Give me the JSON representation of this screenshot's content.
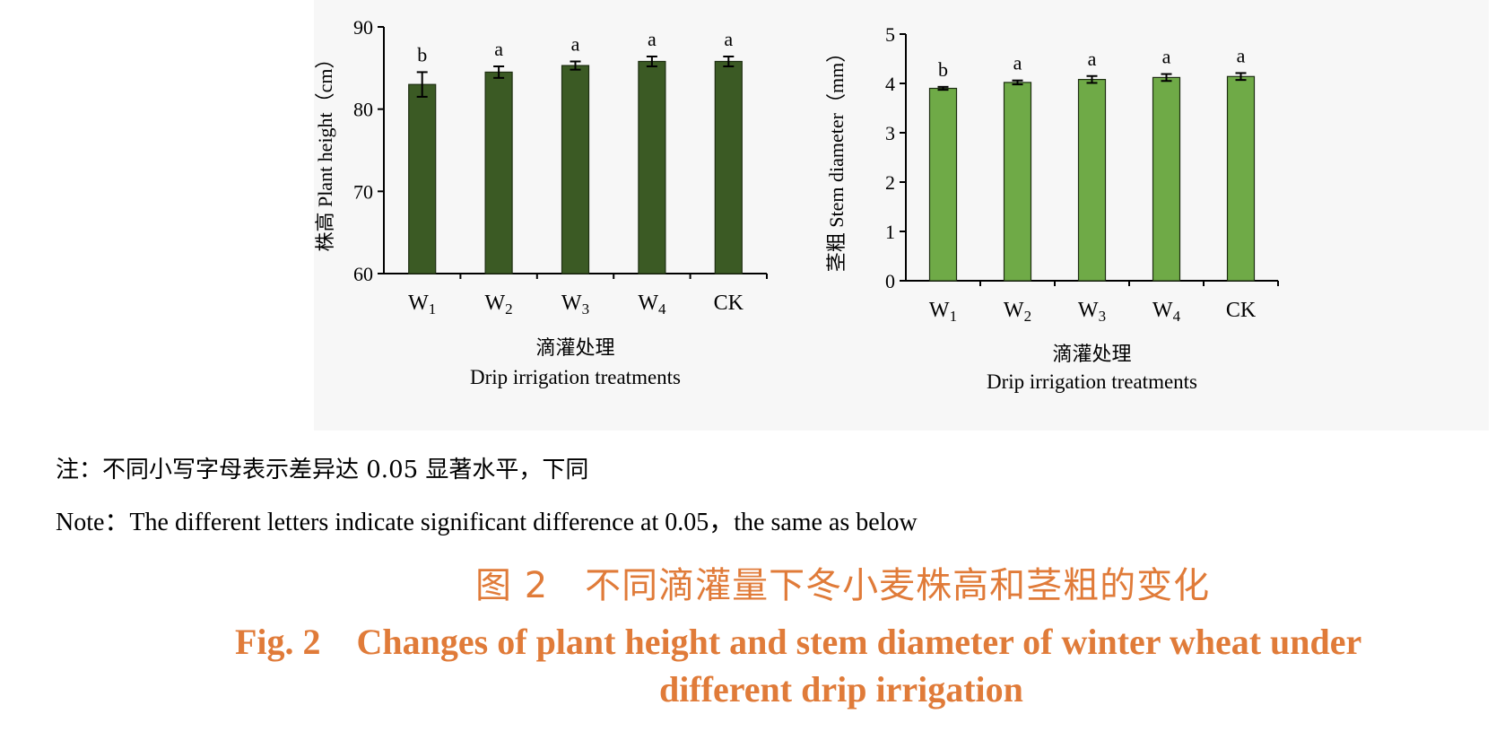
{
  "chart_data": [
    {
      "type": "bar",
      "categories": [
        "W1",
        "W2",
        "W3",
        "W4",
        "CK"
      ],
      "values": [
        83.0,
        84.5,
        85.3,
        85.8,
        85.8
      ],
      "errors": [
        1.5,
        0.7,
        0.5,
        0.6,
        0.6
      ],
      "significance": [
        "b",
        "a",
        "a",
        "a",
        "a"
      ],
      "ylim": [
        60,
        90
      ],
      "yticks": [
        60,
        70,
        80,
        90
      ],
      "ylabel": "株高 Plant height（cm）",
      "xlabel_cn": "滴灌处理",
      "xlabel_en": "Drip irrigation treatments",
      "color": "#3b5a24"
    },
    {
      "type": "bar",
      "categories": [
        "W1",
        "W2",
        "W3",
        "W4",
        "CK"
      ],
      "values": [
        3.9,
        4.02,
        4.08,
        4.12,
        4.14
      ],
      "errors": [
        0.03,
        0.04,
        0.07,
        0.07,
        0.07
      ],
      "significance": [
        "b",
        "a",
        "a",
        "a",
        "a"
      ],
      "ylim": [
        0,
        5
      ],
      "yticks": [
        0,
        1,
        2,
        3,
        4,
        5
      ],
      "ylabel": "茎粗 Stem diameter（mm）",
      "xlabel_cn": "滴灌处理",
      "xlabel_en": "Drip irrigation treatments",
      "color": "#6faa47"
    }
  ],
  "note_cn": "注：不同小写字母表示差异达 0.05 显著水平，下同",
  "note_en": "Note：The different letters indicate significant difference at 0.05，the same as below",
  "caption_cn": "图 2　不同滴灌量下冬小麦株高和茎粗的变化",
  "caption_en_line1": "Fig. 2　Changes of plant height and stem diameter of winter wheat under",
  "caption_en_line2": "different drip irrigation"
}
